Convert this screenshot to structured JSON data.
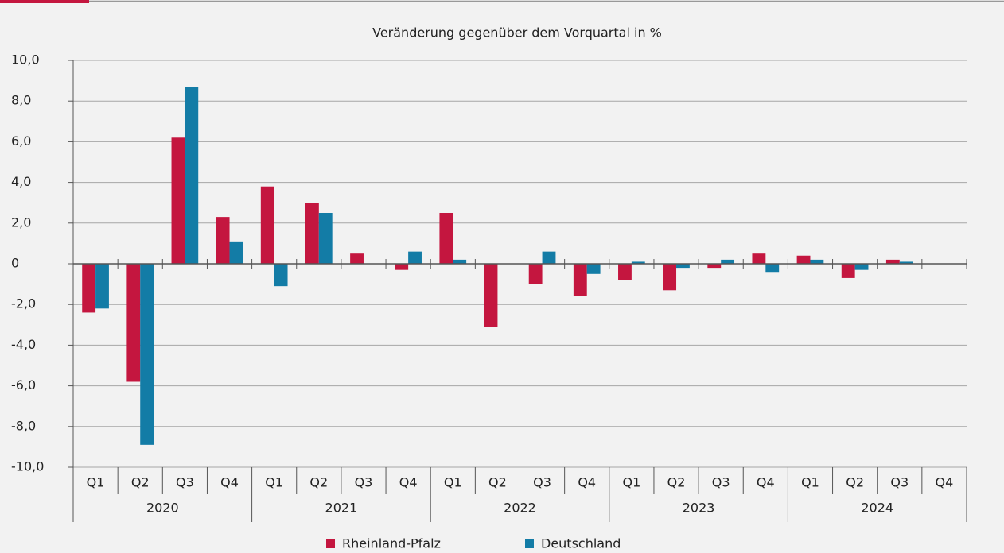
{
  "chart_data": {
    "type": "bar",
    "title": "Veränderung gegenüber dem Vorquartal in %",
    "categories": [
      "Q1",
      "Q2",
      "Q3",
      "Q4",
      "Q1",
      "Q2",
      "Q3",
      "Q4",
      "Q1",
      "Q2",
      "Q3",
      "Q4",
      "Q1",
      "Q2",
      "Q3",
      "Q4",
      "Q1",
      "Q2",
      "Q3",
      "Q4"
    ],
    "years": [
      "2020",
      "2021",
      "2022",
      "2023",
      "2024"
    ],
    "series": [
      {
        "name": "Rheinland-Pfalz",
        "color": "#c4163f",
        "values": [
          -2.4,
          -5.8,
          6.2,
          2.3,
          3.8,
          3.0,
          0.5,
          -0.3,
          2.5,
          -3.1,
          -1.0,
          -1.6,
          -0.8,
          -1.3,
          -0.2,
          0.5,
          0.4,
          -0.7,
          0.2,
          null
        ]
      },
      {
        "name": "Deutschland",
        "color": "#137ca6",
        "values": [
          -2.2,
          -8.9,
          8.7,
          1.1,
          -1.1,
          2.5,
          0,
          0.6,
          0.2,
          0,
          0.6,
          -0.5,
          0.1,
          -0.2,
          0.2,
          -0.4,
          0.2,
          -0.3,
          0.1,
          null
        ]
      }
    ],
    "ylim": [
      -10,
      10
    ],
    "yticks": [
      {
        "value": 10,
        "label": "10,0"
      },
      {
        "value": 8,
        "label": "8,0"
      },
      {
        "value": 6,
        "label": "6,0"
      },
      {
        "value": 4,
        "label": "4,0"
      },
      {
        "value": 2,
        "label": "2,0"
      },
      0,
      {
        "value": -2,
        "label": "-2,0"
      },
      {
        "value": -4,
        "label": "-4,0"
      },
      {
        "value": -6,
        "label": "-6,0"
      },
      {
        "value": -8,
        "label": "-8,0"
      },
      {
        "value": -10,
        "label": "-10,0"
      }
    ],
    "grid": true,
    "legend": "bottom"
  }
}
